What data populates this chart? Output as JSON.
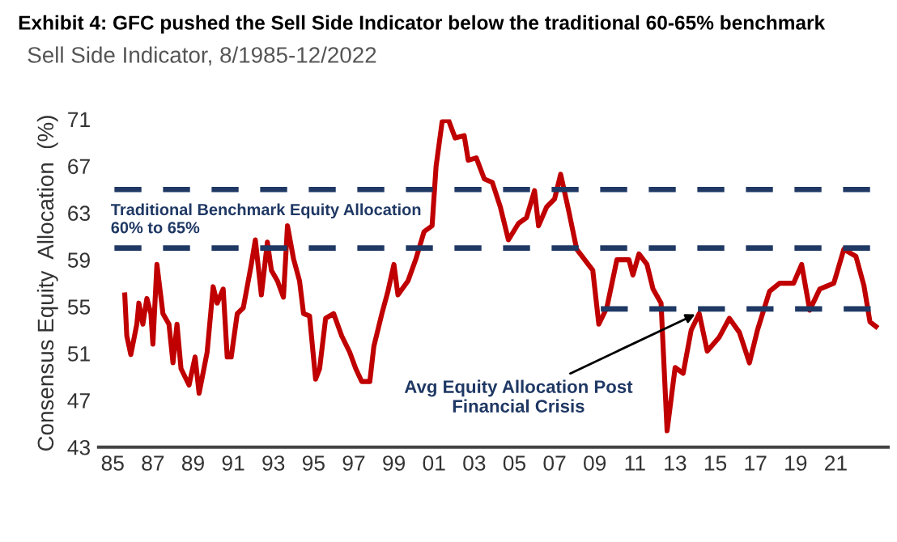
{
  "chart_data": {
    "type": "line",
    "title": "Exhibit 4: GFC pushed the Sell Side Indicator below the traditional 60-65% benchmark",
    "subtitle": "Sell Side Indicator, 8/1985-12/2022",
    "ylabel": "Consensus Equity  Allocation  (%)",
    "series": [
      {
        "color": "#c00000",
        "line_style": "solid",
        "x": [
          1985.6,
          1985.7,
          1985.9,
          1986.2,
          1986.3,
          1986.5,
          1986.7,
          1986.9,
          1987.0,
          1987.2,
          1987.3,
          1987.5,
          1987.8,
          1988.0,
          1988.2,
          1988.4,
          1988.8,
          1989.1,
          1989.3,
          1989.7,
          1990.0,
          1990.2,
          1990.5,
          1990.7,
          1990.9,
          1991.2,
          1991.5,
          1991.9,
          1992.1,
          1992.4,
          1992.7,
          1992.9,
          1993.2,
          1993.5,
          1993.7,
          1994.0,
          1994.3,
          1994.5,
          1994.8,
          1995.1,
          1995.3,
          1995.6,
          1996.0,
          1996.4,
          1996.8,
          1997.1,
          1997.4,
          1997.8,
          1998.0,
          1998.4,
          1998.7,
          1999.0,
          1999.2,
          1999.7,
          2000.1,
          2000.5,
          2000.9,
          2001.1,
          2001.4,
          2001.7,
          2002.05,
          2002.5,
          2002.7,
          2003.1,
          2003.5,
          2003.9,
          2004.3,
          2004.7,
          2005.2,
          2005.6,
          2006.0,
          2006.2,
          2006.6,
          2007.0,
          2007.3,
          2007.7,
          2008.1,
          2008.5,
          2008.9,
          2009.2,
          2009.6,
          2010.1,
          2010.7,
          2010.9,
          2011.2,
          2011.6,
          2011.9,
          2012.3,
          2012.6,
          2013.0,
          2013.4,
          2013.8,
          2014.2,
          2014.6,
          2015.2,
          2015.7,
          2016.2,
          2016.7,
          2017.1,
          2017.7,
          2018.2,
          2018.9,
          2019.3,
          2019.7,
          2020.2,
          2020.9,
          2021.4,
          2022.0,
          2022.4,
          2022.7,
          2023.0
        ],
        "values": [
          56.0,
          52.5,
          50.9,
          53.5,
          55.3,
          53.5,
          55.7,
          54.4,
          51.8,
          58.6,
          57.2,
          54.4,
          53.5,
          50.2,
          53.5,
          49.7,
          48.3,
          50.7,
          47.6,
          51.1,
          56.7,
          55.3,
          56.5,
          50.7,
          50.7,
          54.4,
          54.9,
          58.6,
          60.7,
          56.0,
          60.5,
          58.1,
          57.2,
          55.8,
          61.9,
          59.1,
          57.2,
          54.4,
          54.2,
          48.8,
          49.7,
          54.0,
          54.4,
          52.5,
          51.1,
          49.7,
          48.6,
          48.6,
          51.6,
          54.4,
          56.3,
          58.6,
          56.0,
          57.2,
          59.1,
          61.4,
          61.9,
          67.0,
          70.8,
          71.0,
          69.4,
          69.6,
          67.5,
          67.7,
          65.9,
          65.6,
          63.5,
          60.7,
          62.1,
          62.6,
          64.9,
          61.9,
          63.5,
          64.2,
          66.3,
          63.2,
          59.9,
          59.0,
          58.1,
          53.5,
          54.9,
          59.0,
          59.0,
          57.7,
          59.5,
          58.6,
          56.5,
          55.3,
          44.4,
          49.8,
          49.3,
          53.0,
          54.4,
          51.2,
          52.4,
          54.0,
          52.8,
          50.2,
          53.0,
          56.3,
          57.0,
          57.0,
          58.6,
          54.7,
          56.5,
          57.0,
          59.9,
          59.3,
          56.8,
          53.7,
          53.3
        ]
      },
      {
        "color": "#1f3864",
        "line_style": "dashed",
        "x": [
          2009.3,
          2023.1
        ],
        "values": [
          54.8,
          54.8
        ]
      }
    ],
    "ref_lines": [
      {
        "axis": "y",
        "value": 65,
        "color": "#1f3864",
        "line_style": "dashed"
      },
      {
        "axis": "y",
        "value": 60,
        "color": "#1f3864",
        "line_style": "dashed"
      }
    ],
    "annotations": [
      "Traditional Benchmark Equity Allocation\n60% to 65%",
      {
        "text": "Avg Equity Allocation Post\nFinancial Crisis",
        "x": 2014.2,
        "y": 54.5
      }
    ],
    "xlim": [
      1984.3,
      2023.6
    ],
    "xticks": [
      {
        "value": 1985,
        "label": "85"
      },
      {
        "value": 1987,
        "label": "87"
      },
      {
        "value": 1989,
        "label": "89"
      },
      {
        "value": 1991,
        "label": "91"
      },
      {
        "value": 1993,
        "label": "93"
      },
      {
        "value": 1995,
        "label": "95"
      },
      {
        "value": 1997,
        "label": "97"
      },
      {
        "value": 1999,
        "label": "99"
      },
      {
        "value": 2001,
        "label": "01"
      },
      {
        "value": 2003,
        "label": "03"
      },
      {
        "value": 2005,
        "label": "05"
      },
      {
        "value": 2007,
        "label": "07"
      },
      {
        "value": 2009,
        "label": "09"
      },
      {
        "value": 2011,
        "label": "11"
      },
      {
        "value": 2013,
        "label": "13"
      },
      {
        "value": 2015,
        "label": "15"
      },
      {
        "value": 2017,
        "label": "17"
      },
      {
        "value": 2019,
        "label": "19"
      },
      {
        "value": 2021,
        "label": "21"
      }
    ],
    "ylim": [
      43,
      71
    ],
    "yticks": [
      43,
      47,
      51,
      55,
      59,
      63,
      67,
      71
    ],
    "grid": false,
    "legend": false
  }
}
